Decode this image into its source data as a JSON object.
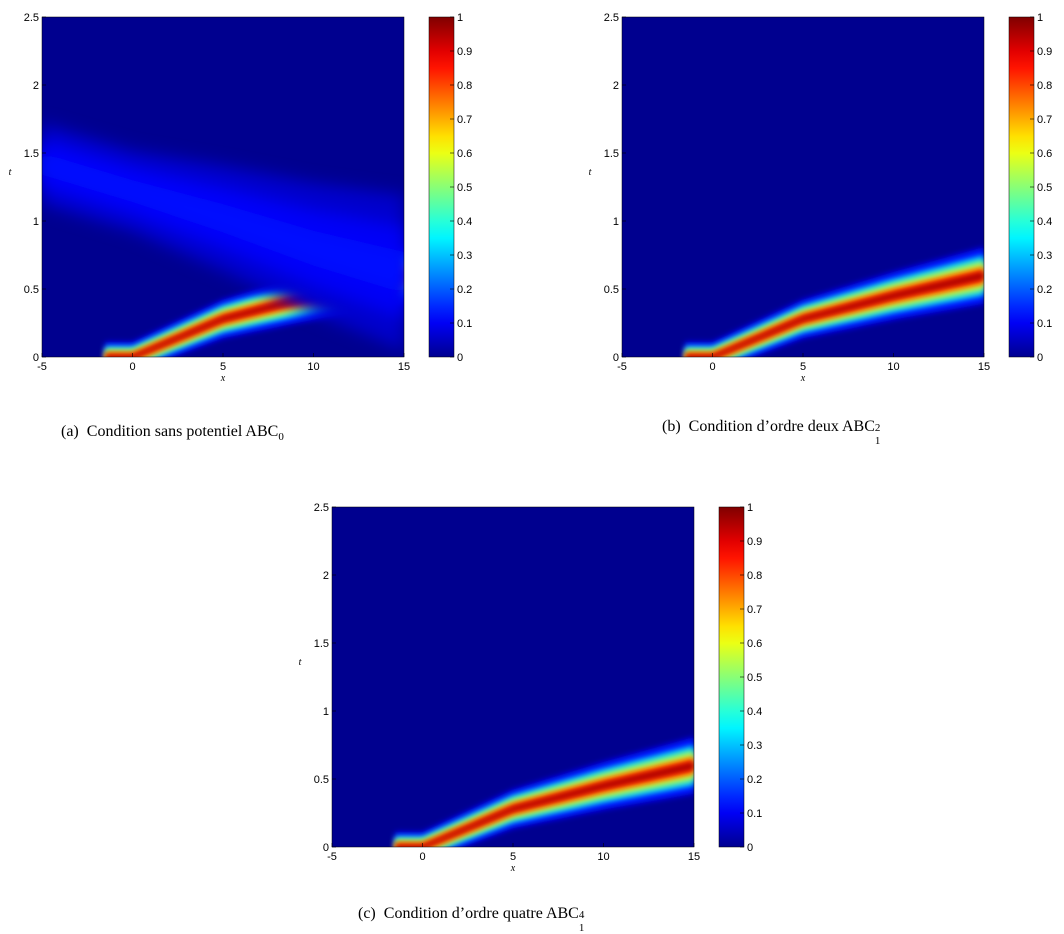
{
  "colormap": {
    "name": "jet",
    "stops": [
      "#00008f",
      "#0000ff",
      "#00ffff",
      "#ffff00",
      "#ff0000",
      "#800000"
    ]
  },
  "chart_data": [
    {
      "type": "heatmap",
      "caption": {
        "prefix": "(a)",
        "text": "Condition sans potentiel ABC",
        "sub": "0",
        "sup": ""
      },
      "xlabel": "x",
      "ylabel": "t",
      "xlim": [
        -5,
        15
      ],
      "ylim": [
        0,
        2.5
      ],
      "xticks": [
        "-5",
        "0",
        "5",
        "10",
        "15"
      ],
      "yticks": [
        "0",
        "0.5",
        "1",
        "1.5",
        "2",
        "2.5"
      ],
      "colorbar": {
        "range": [
          0,
          1
        ],
        "ticks": [
          "0",
          "0.1",
          "0.2",
          "0.3",
          "0.4",
          "0.5",
          "0.6",
          "0.7",
          "0.8",
          "0.9",
          "1"
        ]
      },
      "features": [
        {
          "kind": "outgoing-wave",
          "x0": 0,
          "center_t_at_x": [
            [
              0,
              0.0
            ],
            [
              5,
              0.28
            ],
            [
              10,
              0.45
            ],
            [
              15,
              0.6
            ]
          ],
          "peak": 1.0
        },
        {
          "kind": "reflected-wave",
          "center_t_at_x": [
            [
              15,
              0.62
            ],
            [
              10,
              0.8
            ],
            [
              5,
              1.02
            ],
            [
              0,
              1.22
            ],
            [
              -5,
              1.42
            ]
          ],
          "peak": 0.12
        }
      ]
    },
    {
      "type": "heatmap",
      "caption": {
        "prefix": "(b)",
        "text": "Condition d’ordre deux ABC",
        "sub": "1",
        "sup": "2"
      },
      "xlabel": "x",
      "ylabel": "t",
      "xlim": [
        -5,
        15
      ],
      "ylim": [
        0,
        2.5
      ],
      "xticks": [
        "-5",
        "0",
        "5",
        "10",
        "15"
      ],
      "yticks": [
        "0",
        "0.5",
        "1",
        "1.5",
        "2",
        "2.5"
      ],
      "colorbar": {
        "range": [
          0,
          1
        ],
        "ticks": [
          "0",
          "0.1",
          "0.2",
          "0.3",
          "0.4",
          "0.5",
          "0.6",
          "0.7",
          "0.8",
          "0.9",
          "1"
        ]
      },
      "features": [
        {
          "kind": "outgoing-wave",
          "x0": 0,
          "center_t_at_x": [
            [
              0,
              0.0
            ],
            [
              5,
              0.28
            ],
            [
              10,
              0.45
            ],
            [
              15,
              0.6
            ]
          ],
          "peak": 1.0
        }
      ]
    },
    {
      "type": "heatmap",
      "caption": {
        "prefix": "(c)",
        "text": "Condition d’ordre quatre ABC",
        "sub": "1",
        "sup": "4"
      },
      "xlabel": "x",
      "ylabel": "t",
      "xlim": [
        -5,
        15
      ],
      "ylim": [
        0,
        2.5
      ],
      "xticks": [
        "-5",
        "0",
        "5",
        "10",
        "15"
      ],
      "yticks": [
        "0",
        "0.5",
        "1",
        "1.5",
        "2",
        "2.5"
      ],
      "colorbar": {
        "range": [
          0,
          1
        ],
        "ticks": [
          "0",
          "0.1",
          "0.2",
          "0.3",
          "0.4",
          "0.5",
          "0.6",
          "0.7",
          "0.8",
          "0.9",
          "1"
        ]
      },
      "features": [
        {
          "kind": "outgoing-wave",
          "x0": 0,
          "center_t_at_x": [
            [
              0,
              0.0
            ],
            [
              5,
              0.28
            ],
            [
              10,
              0.45
            ],
            [
              15,
              0.6
            ]
          ],
          "peak": 1.0
        }
      ]
    }
  ]
}
